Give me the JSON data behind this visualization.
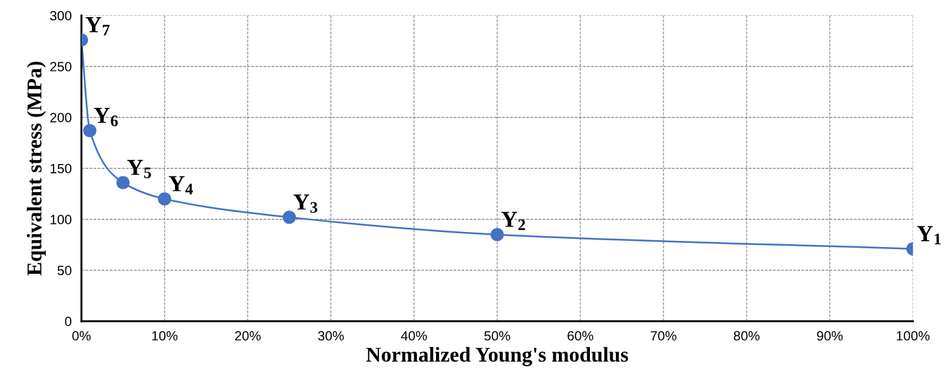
{
  "chart_data": {
    "type": "line",
    "xlabel": "Normalized Young's modulus",
    "ylabel": "Equivalent stress (MPa)",
    "x": [
      0,
      1,
      5,
      10,
      25,
      50,
      100
    ],
    "series": [
      {
        "color": "#4472c4",
        "values": [
          276,
          187,
          136,
          120,
          102,
          85,
          71
        ]
      }
    ],
    "xlim": [
      0,
      100
    ],
    "xticks": [
      {
        "value": 0,
        "label": "0%"
      },
      {
        "value": 10,
        "label": "10%"
      },
      {
        "value": 20,
        "label": "20%"
      },
      {
        "value": 30,
        "label": "30%"
      },
      {
        "value": 40,
        "label": "40%"
      },
      {
        "value": 50,
        "label": "50%"
      },
      {
        "value": 60,
        "label": "60%"
      },
      {
        "value": 70,
        "label": "70%"
      },
      {
        "value": 80,
        "label": "80%"
      },
      {
        "value": 90,
        "label": "90%"
      },
      {
        "value": 100,
        "label": "100%"
      }
    ],
    "ylim": [
      0,
      300
    ],
    "yticks": [
      0,
      50,
      100,
      150,
      200,
      250,
      300
    ],
    "grid": true,
    "marker": "circle",
    "line_style": "solid",
    "annotations": [
      {
        "text": "Y$_{7}$",
        "x": 0,
        "y": 276
      },
      {
        "text": "Y$_{6}$",
        "x": 1,
        "y": 187
      },
      {
        "text": "Y$_{5}$",
        "x": 5,
        "y": 136
      },
      {
        "text": "Y$_{4}$",
        "x": 10,
        "y": 120
      },
      {
        "text": "Y$_{3}$",
        "x": 25,
        "y": 102
      },
      {
        "text": "Y$_{2}$",
        "x": 50,
        "y": 85
      },
      {
        "text": "Y$_{1}$",
        "x": 100,
        "y": 71
      }
    ]
  }
}
